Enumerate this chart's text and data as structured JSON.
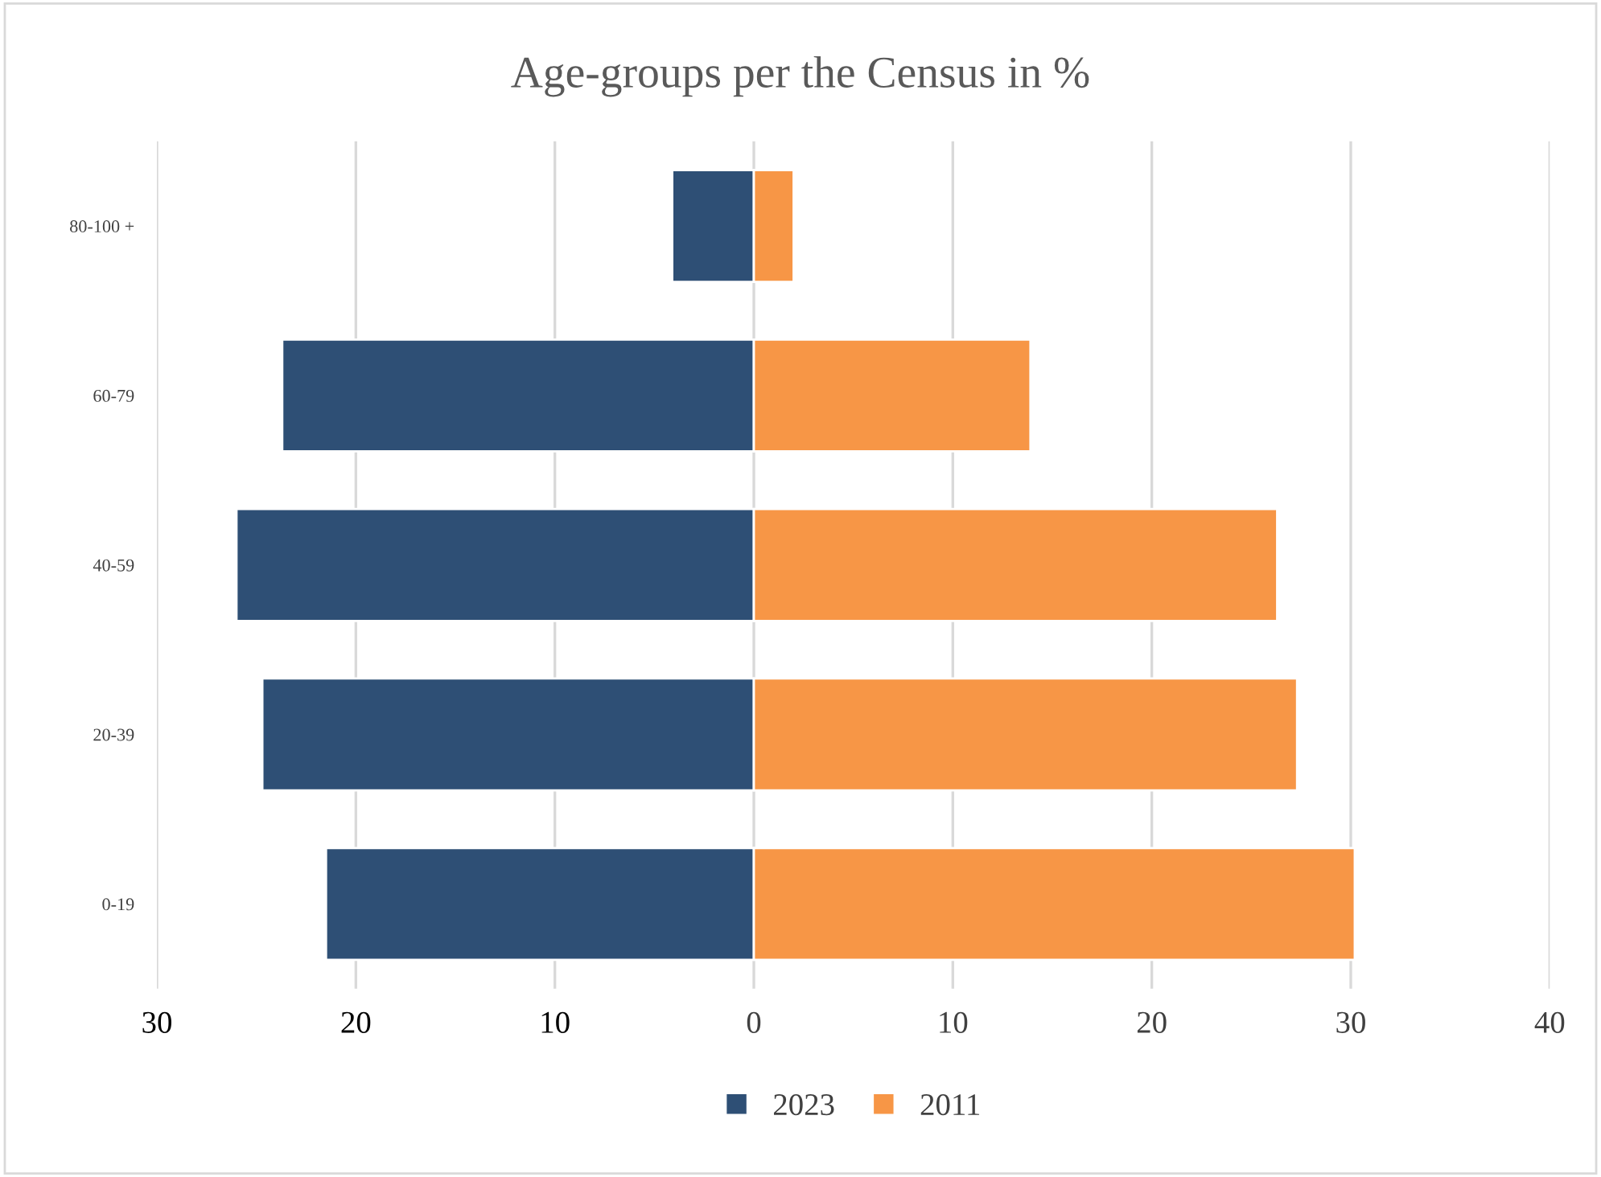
{
  "chart_data": {
    "type": "bar",
    "title": "Age-groups per the Census in %",
    "orientation": "horizontal",
    "stacked": true,
    "categories": [
      "80-100 +",
      "60-79",
      "40-59",
      "20-39",
      "0-19"
    ],
    "series": [
      {
        "name": "2023",
        "color": "#2e4f75",
        "values": [
          -4.1,
          -23.7,
          -26.0,
          -24.7,
          -21.5
        ]
      },
      {
        "name": "2011",
        "color": "#f79646",
        "values": [
          2.0,
          13.9,
          26.3,
          27.3,
          30.2
        ]
      }
    ],
    "xlim": [
      -30,
      40
    ],
    "xticks": [
      {
        "value": -30,
        "label": "30"
      },
      {
        "value": -20,
        "label": "20"
      },
      {
        "value": -10,
        "label": "10"
      },
      0,
      10,
      20,
      30,
      40
    ],
    "grid": "x",
    "legend": "bottom"
  }
}
